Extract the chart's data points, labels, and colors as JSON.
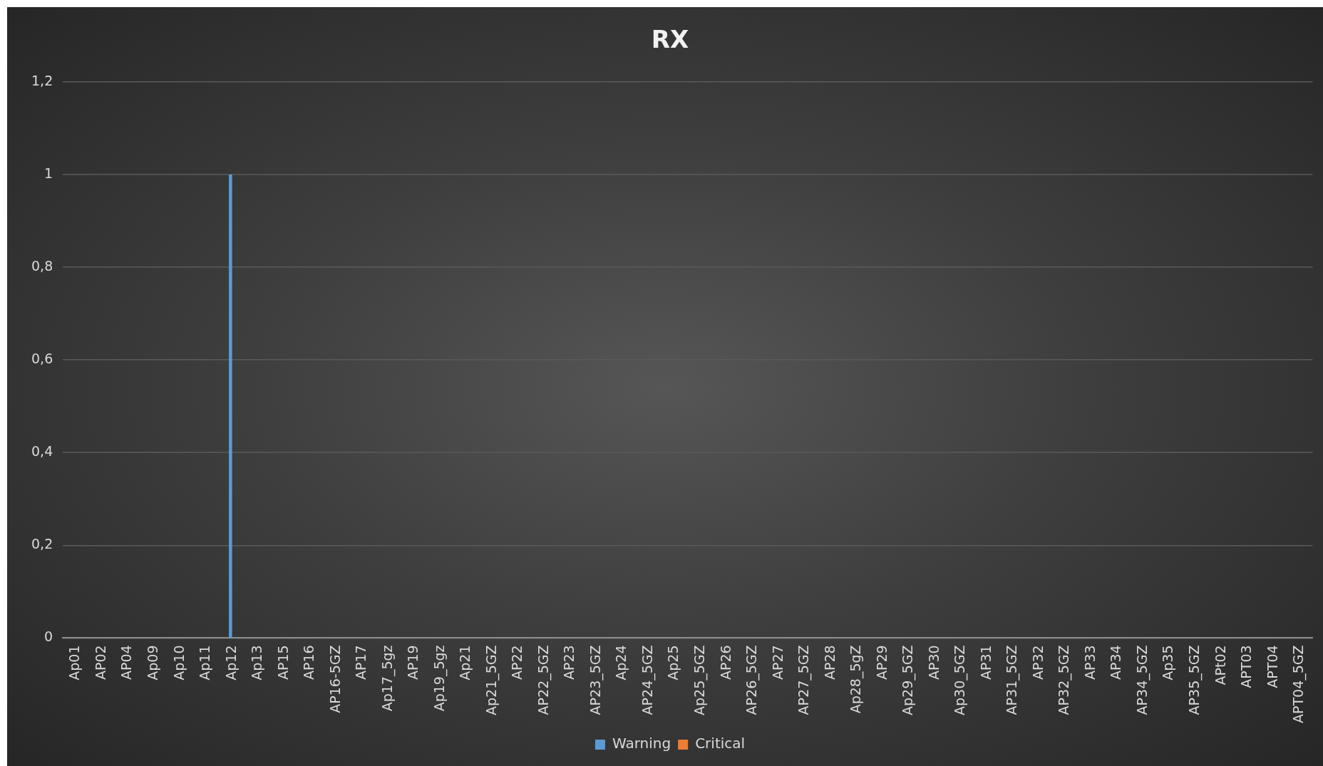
{
  "chart_data": {
    "type": "bar",
    "title": "RX",
    "categories": [
      "Ap01",
      "AP02",
      "AP04",
      "Ap09",
      "Ap10",
      "Ap11",
      "Ap12",
      "Ap13",
      "AP15",
      "AP16",
      "AP16-5GZ",
      "AP17",
      "Ap17_5gz",
      "AP19",
      "Ap19_5gz",
      "Ap21",
      "Ap21_5GZ",
      "AP22",
      "AP22_5GZ",
      "AP23",
      "AP23_5GZ",
      "Ap24",
      "AP24_5GZ",
      "Ap25",
      "Ap25_5GZ",
      "AP26",
      "AP26_5GZ",
      "AP27",
      "AP27_5GZ",
      "AP28",
      "Ap28_5gZ",
      "AP29",
      "Ap29_5GZ",
      "AP30",
      "Ap30_5GZ",
      "AP31",
      "AP31_5GZ",
      "AP32",
      "AP32_5GZ",
      "AP33",
      "AP34",
      "AP34_5GZ",
      "Ap35",
      "AP35_5GZ",
      "APt02",
      "APT03",
      "APT04",
      "APT04_5GZ"
    ],
    "series": [
      {
        "name": "Warning",
        "color": "#5b9bd5",
        "values": [
          0,
          0,
          0,
          0,
          0,
          0,
          1,
          0,
          0,
          0,
          0,
          0,
          0,
          0,
          0,
          0,
          0,
          0,
          0,
          0,
          0,
          0,
          0,
          0,
          0,
          0,
          0,
          0,
          0,
          0,
          0,
          0,
          0,
          0,
          0,
          0,
          0,
          0,
          0,
          0,
          0,
          0,
          0,
          0,
          0,
          0,
          0,
          0
        ]
      },
      {
        "name": "Critical",
        "color": "#ed7d31",
        "values": [
          0,
          0,
          0,
          0,
          0,
          0,
          0,
          0,
          0,
          0,
          0,
          0,
          0,
          0,
          0,
          0,
          0,
          0,
          0,
          0,
          0,
          0,
          0,
          0,
          0,
          0,
          0,
          0,
          0,
          0,
          0,
          0,
          0,
          0,
          0,
          0,
          0,
          0,
          0,
          0,
          0,
          0,
          0,
          0,
          0,
          0,
          0,
          0
        ]
      }
    ],
    "ylim": [
      0,
      1.2
    ],
    "yticks": [
      0,
      {
        "value": 0.2,
        "label": "0,2"
      },
      {
        "value": 0.4,
        "label": "0,4"
      },
      {
        "value": 0.6,
        "label": "0,6"
      },
      {
        "value": 0.8,
        "label": "0,8"
      },
      1,
      {
        "value": 1.2,
        "label": "1,2"
      }
    ],
    "grid": "y",
    "legend": "bottom"
  }
}
